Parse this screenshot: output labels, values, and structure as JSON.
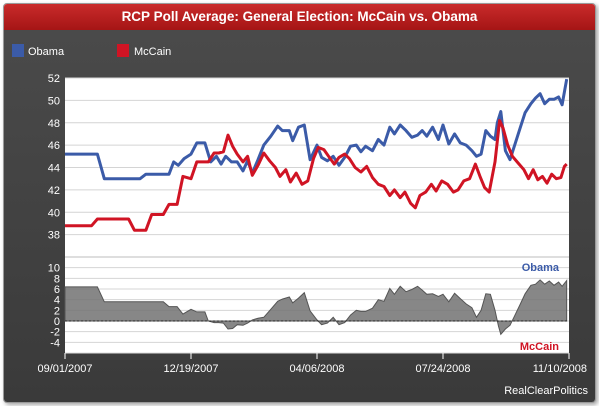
{
  "window": {
    "title": "RCP Poll Average: General Election: McCain vs. Obama"
  },
  "colors": {
    "obama": "#3b5ba8",
    "mccain": "#d01424",
    "spread_fill": "#727272",
    "background": "#444444"
  },
  "chart_data": [
    {
      "type": "line",
      "title": "RCP Poll Average: General Election: McCain vs. Obama",
      "legend_position": "top-left",
      "grid": true,
      "ylim": [
        36,
        52
      ],
      "yticks": [
        38,
        40,
        42,
        44,
        46,
        48,
        50,
        52
      ],
      "x_start": "09/01/2007",
      "x_end": "11/10/2008",
      "xtick_labels": [
        "09/01/2007",
        "12/19/2007",
        "04/06/2008",
        "07/24/2008",
        "11/10/2008"
      ],
      "series": [
        {
          "name": "Obama",
          "color": "#3b5ba8",
          "points": [
            [
              "2007-09-01",
              45.2
            ],
            [
              "2007-09-29",
              45.2
            ],
            [
              "2007-10-05",
              43.0
            ],
            [
              "2007-11-05",
              43.0
            ],
            [
              "2007-11-10",
              43.4
            ],
            [
              "2007-11-30",
              43.4
            ],
            [
              "2007-12-04",
              44.5
            ],
            [
              "2007-12-08",
              44.2
            ],
            [
              "2007-12-13",
              44.8
            ],
            [
              "2007-12-19",
              45.2
            ],
            [
              "2007-12-24",
              46.2
            ],
            [
              "2007-12-31",
              46.2
            ],
            [
              "2008-01-05",
              44.5
            ],
            [
              "2008-01-10",
              45.0
            ],
            [
              "2008-01-14",
              44.3
            ],
            [
              "2008-01-18",
              45.0
            ],
            [
              "2008-01-23",
              44.5
            ],
            [
              "2008-01-28",
              44.5
            ],
            [
              "2008-02-02",
              43.7
            ],
            [
              "2008-02-06",
              44.6
            ],
            [
              "2008-02-10",
              43.5
            ],
            [
              "2008-02-15",
              44.7
            ],
            [
              "2008-02-20",
              46.0
            ],
            [
              "2008-02-26",
              46.8
            ],
            [
              "2008-03-03",
              47.7
            ],
            [
              "2008-03-07",
              47.3
            ],
            [
              "2008-03-13",
              47.3
            ],
            [
              "2008-03-16",
              46.4
            ],
            [
              "2008-03-21",
              47.6
            ],
            [
              "2008-03-26",
              47.8
            ],
            [
              "2008-03-31",
              44.7
            ],
            [
              "2008-04-06",
              46.0
            ],
            [
              "2008-04-10",
              44.9
            ],
            [
              "2008-04-15",
              44.6
            ],
            [
              "2008-04-20",
              45.0
            ],
            [
              "2008-04-25",
              44.2
            ],
            [
              "2008-04-30",
              44.9
            ],
            [
              "2008-05-05",
              45.9
            ],
            [
              "2008-05-10",
              46.0
            ],
            [
              "2008-05-14",
              45.4
            ],
            [
              "2008-05-18",
              45.9
            ],
            [
              "2008-05-24",
              45.5
            ],
            [
              "2008-05-29",
              46.5
            ],
            [
              "2008-06-03",
              46.0
            ],
            [
              "2008-06-08",
              47.6
            ],
            [
              "2008-06-12",
              47.0
            ],
            [
              "2008-06-17",
              47.8
            ],
            [
              "2008-06-22",
              47.3
            ],
            [
              "2008-06-27",
              46.7
            ],
            [
              "2008-07-02",
              46.9
            ],
            [
              "2008-07-06",
              47.3
            ],
            [
              "2008-07-10",
              46.8
            ],
            [
              "2008-07-15",
              47.6
            ],
            [
              "2008-07-20",
              46.5
            ],
            [
              "2008-07-24",
              47.8
            ],
            [
              "2008-07-29",
              46.1
            ],
            [
              "2008-08-03",
              47.0
            ],
            [
              "2008-08-08",
              46.2
            ],
            [
              "2008-08-13",
              46.0
            ],
            [
              "2008-08-18",
              45.5
            ],
            [
              "2008-08-22",
              45.0
            ],
            [
              "2008-08-26",
              45.2
            ],
            [
              "2008-08-30",
              47.3
            ],
            [
              "2008-09-03",
              46.8
            ],
            [
              "2008-09-07",
              46.5
            ],
            [
              "2008-09-09",
              48.0
            ],
            [
              "2008-09-12",
              49.0
            ],
            [
              "2008-09-16",
              45.5
            ],
            [
              "2008-09-20",
              44.7
            ],
            [
              "2008-09-24",
              46.0
            ],
            [
              "2008-09-29",
              47.6
            ],
            [
              "2008-10-03",
              48.9
            ],
            [
              "2008-10-08",
              49.7
            ],
            [
              "2008-10-12",
              50.2
            ],
            [
              "2008-10-16",
              50.6
            ],
            [
              "2008-10-20",
              49.7
            ],
            [
              "2008-10-24",
              50.1
            ],
            [
              "2008-10-28",
              50.1
            ],
            [
              "2008-11-01",
              50.3
            ],
            [
              "2008-11-04",
              49.6
            ],
            [
              "2008-11-08",
              51.9
            ]
          ]
        },
        {
          "name": "McCain",
          "color": "#d01424",
          "points": [
            [
              "2007-09-01",
              38.8
            ],
            [
              "2007-09-24",
              38.8
            ],
            [
              "2007-09-29",
              39.4
            ],
            [
              "2007-10-26",
              39.4
            ],
            [
              "2007-10-31",
              38.4
            ],
            [
              "2007-11-10",
              38.4
            ],
            [
              "2007-11-15",
              39.8
            ],
            [
              "2007-11-25",
              39.8
            ],
            [
              "2007-11-30",
              40.7
            ],
            [
              "2007-12-07",
              40.7
            ],
            [
              "2007-12-12",
              43.2
            ],
            [
              "2007-12-19",
              43.0
            ],
            [
              "2007-12-24",
              44.5
            ],
            [
              "2008-01-03",
              44.5
            ],
            [
              "2008-01-08",
              45.3
            ],
            [
              "2008-01-12",
              45.3
            ],
            [
              "2008-01-16",
              45.4
            ],
            [
              "2008-01-20",
              46.9
            ],
            [
              "2008-01-24",
              45.9
            ],
            [
              "2008-01-28",
              45.2
            ],
            [
              "2008-02-02",
              44.5
            ],
            [
              "2008-02-06",
              45.0
            ],
            [
              "2008-02-10",
              43.3
            ],
            [
              "2008-02-15",
              44.2
            ],
            [
              "2008-02-20",
              45.3
            ],
            [
              "2008-02-25",
              44.6
            ],
            [
              "2008-03-01",
              44.0
            ],
            [
              "2008-03-05",
              43.2
            ],
            [
              "2008-03-10",
              43.8
            ],
            [
              "2008-03-14",
              42.7
            ],
            [
              "2008-03-19",
              43.5
            ],
            [
              "2008-03-24",
              42.5
            ],
            [
              "2008-03-29",
              42.8
            ],
            [
              "2008-04-03",
              44.8
            ],
            [
              "2008-04-07",
              45.8
            ],
            [
              "2008-04-12",
              45.6
            ],
            [
              "2008-04-16",
              45.0
            ],
            [
              "2008-04-21",
              44.3
            ],
            [
              "2008-04-25",
              44.9
            ],
            [
              "2008-04-30",
              45.2
            ],
            [
              "2008-05-04",
              44.8
            ],
            [
              "2008-05-09",
              44.0
            ],
            [
              "2008-05-14",
              43.6
            ],
            [
              "2008-05-19",
              44.1
            ],
            [
              "2008-05-24",
              43.1
            ],
            [
              "2008-05-29",
              42.5
            ],
            [
              "2008-06-03",
              42.3
            ],
            [
              "2008-06-08",
              41.5
            ],
            [
              "2008-06-12",
              42.0
            ],
            [
              "2008-06-17",
              41.3
            ],
            [
              "2008-06-21",
              41.8
            ],
            [
              "2008-06-26",
              40.8
            ],
            [
              "2008-06-30",
              40.4
            ],
            [
              "2008-07-04",
              41.5
            ],
            [
              "2008-07-09",
              41.8
            ],
            [
              "2008-07-14",
              42.5
            ],
            [
              "2008-07-18",
              41.9
            ],
            [
              "2008-07-23",
              42.8
            ],
            [
              "2008-07-28",
              42.5
            ],
            [
              "2008-08-02",
              41.8
            ],
            [
              "2008-08-06",
              42.0
            ],
            [
              "2008-08-11",
              42.8
            ],
            [
              "2008-08-16",
              43.0
            ],
            [
              "2008-08-21",
              44.3
            ],
            [
              "2008-08-25",
              43.2
            ],
            [
              "2008-08-29",
              42.2
            ],
            [
              "2008-09-02",
              41.8
            ],
            [
              "2008-09-07",
              44.5
            ],
            [
              "2008-09-11",
              48.2
            ],
            [
              "2008-09-14",
              47.5
            ],
            [
              "2008-09-18",
              46.0
            ],
            [
              "2008-09-22",
              45.0
            ],
            [
              "2008-09-27",
              44.4
            ],
            [
              "2008-10-02",
              43.8
            ],
            [
              "2008-10-06",
              43.0
            ],
            [
              "2008-10-10",
              43.8
            ],
            [
              "2008-10-14",
              42.9
            ],
            [
              "2008-10-18",
              43.2
            ],
            [
              "2008-10-22",
              42.6
            ],
            [
              "2008-10-26",
              43.4
            ],
            [
              "2008-10-30",
              43.0
            ],
            [
              "2008-11-03",
              43.1
            ],
            [
              "2008-11-06",
              44.1
            ],
            [
              "2008-11-08",
              44.3
            ]
          ]
        }
      ]
    },
    {
      "type": "area",
      "series_label_top": "Obama",
      "series_label_bottom": "McCain",
      "ylim": [
        -6,
        12
      ],
      "yticks": [
        -4,
        -2,
        0,
        2,
        4,
        6,
        8,
        10
      ],
      "spread": [
        [
          "2007-09-01",
          6.4
        ],
        [
          "2007-09-29",
          6.4
        ],
        [
          "2007-10-05",
          3.6
        ],
        [
          "2007-11-15",
          3.6
        ],
        [
          "2007-11-25",
          3.6
        ],
        [
          "2007-11-30",
          2.7
        ],
        [
          "2007-12-07",
          2.7
        ],
        [
          "2007-12-12",
          1.3
        ],
        [
          "2007-12-19",
          2.2
        ],
        [
          "2007-12-24",
          1.7
        ],
        [
          "2007-12-31",
          1.7
        ],
        [
          "2008-01-03",
          0.0
        ],
        [
          "2008-01-08",
          -0.3
        ],
        [
          "2008-01-12",
          -0.3
        ],
        [
          "2008-01-16",
          -0.4
        ],
        [
          "2008-01-20",
          -1.5
        ],
        [
          "2008-01-24",
          -1.4
        ],
        [
          "2008-01-28",
          -0.7
        ],
        [
          "2008-02-02",
          -0.8
        ],
        [
          "2008-02-06",
          -0.4
        ],
        [
          "2008-02-10",
          0.2
        ],
        [
          "2008-02-15",
          0.5
        ],
        [
          "2008-02-20",
          0.7
        ],
        [
          "2008-02-26",
          2.2
        ],
        [
          "2008-03-03",
          3.7
        ],
        [
          "2008-03-07",
          4.1
        ],
        [
          "2008-03-13",
          4.5
        ],
        [
          "2008-03-16",
          3.4
        ],
        [
          "2008-03-21",
          4.3
        ],
        [
          "2008-03-26",
          5.3
        ],
        [
          "2008-03-31",
          1.9
        ],
        [
          "2008-04-06",
          0.2
        ],
        [
          "2008-04-10",
          -0.7
        ],
        [
          "2008-04-15",
          -0.4
        ],
        [
          "2008-04-20",
          0.7
        ],
        [
          "2008-04-25",
          -0.7
        ],
        [
          "2008-04-30",
          -0.3
        ],
        [
          "2008-05-05",
          1.1
        ],
        [
          "2008-05-10",
          2.0
        ],
        [
          "2008-05-14",
          1.8
        ],
        [
          "2008-05-18",
          1.8
        ],
        [
          "2008-05-24",
          2.4
        ],
        [
          "2008-05-29",
          4.0
        ],
        [
          "2008-06-03",
          3.7
        ],
        [
          "2008-06-08",
          6.1
        ],
        [
          "2008-06-12",
          5.0
        ],
        [
          "2008-06-17",
          6.5
        ],
        [
          "2008-06-22",
          5.5
        ],
        [
          "2008-06-27",
          5.9
        ],
        [
          "2008-07-02",
          6.5
        ],
        [
          "2008-07-06",
          5.8
        ],
        [
          "2008-07-10",
          5.0
        ],
        [
          "2008-07-15",
          5.1
        ],
        [
          "2008-07-20",
          4.6
        ],
        [
          "2008-07-24",
          5.0
        ],
        [
          "2008-07-29",
          3.6
        ],
        [
          "2008-08-03",
          5.2
        ],
        [
          "2008-08-08",
          4.2
        ],
        [
          "2008-08-13",
          3.2
        ],
        [
          "2008-08-18",
          2.5
        ],
        [
          "2008-08-22",
          0.7
        ],
        [
          "2008-08-26",
          2.0
        ],
        [
          "2008-08-30",
          5.1
        ],
        [
          "2008-09-03",
          5.0
        ],
        [
          "2008-09-07",
          2.0
        ],
        [
          "2008-09-10",
          -1.0
        ],
        [
          "2008-09-12",
          -2.5
        ],
        [
          "2008-09-16",
          -1.5
        ],
        [
          "2008-09-20",
          -0.8
        ],
        [
          "2008-09-24",
          1.0
        ],
        [
          "2008-09-29",
          3.2
        ],
        [
          "2008-10-03",
          5.1
        ],
        [
          "2008-10-08",
          6.7
        ],
        [
          "2008-10-12",
          6.9
        ],
        [
          "2008-10-16",
          7.7
        ],
        [
          "2008-10-20",
          6.9
        ],
        [
          "2008-10-24",
          7.5
        ],
        [
          "2008-10-28",
          6.7
        ],
        [
          "2008-11-01",
          7.3
        ],
        [
          "2008-11-04",
          6.5
        ],
        [
          "2008-11-08",
          7.6
        ]
      ]
    }
  ],
  "footer": {
    "source": "RealClearPolitics"
  }
}
